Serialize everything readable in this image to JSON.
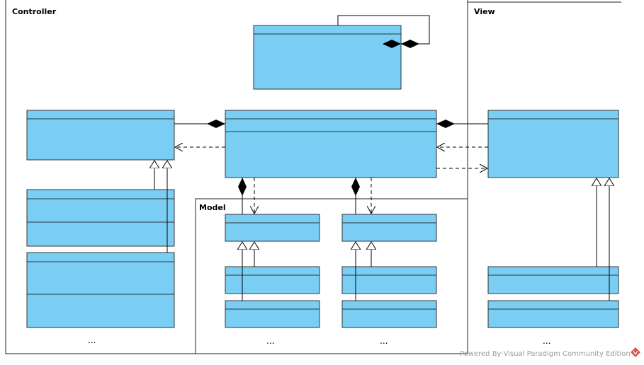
{
  "colors": {
    "class_fill": "#7acef4",
    "class_stroke": "#333333",
    "line": "#000000",
    "watermark": "#9a9a9a",
    "watermark_logo": "#d9534f"
  },
  "packages": {
    "controller": {
      "label": "Controller"
    },
    "view": {
      "label": "View"
    },
    "model": {
      "label": "Model"
    }
  },
  "ellipses": {
    "controller": "...",
    "model_left": "...",
    "model_right": "...",
    "view": "..."
  },
  "watermark": {
    "text": "Powered By·Visual Paradigm Community Edition",
    "icon": "visual-paradigm-logo-icon"
  }
}
